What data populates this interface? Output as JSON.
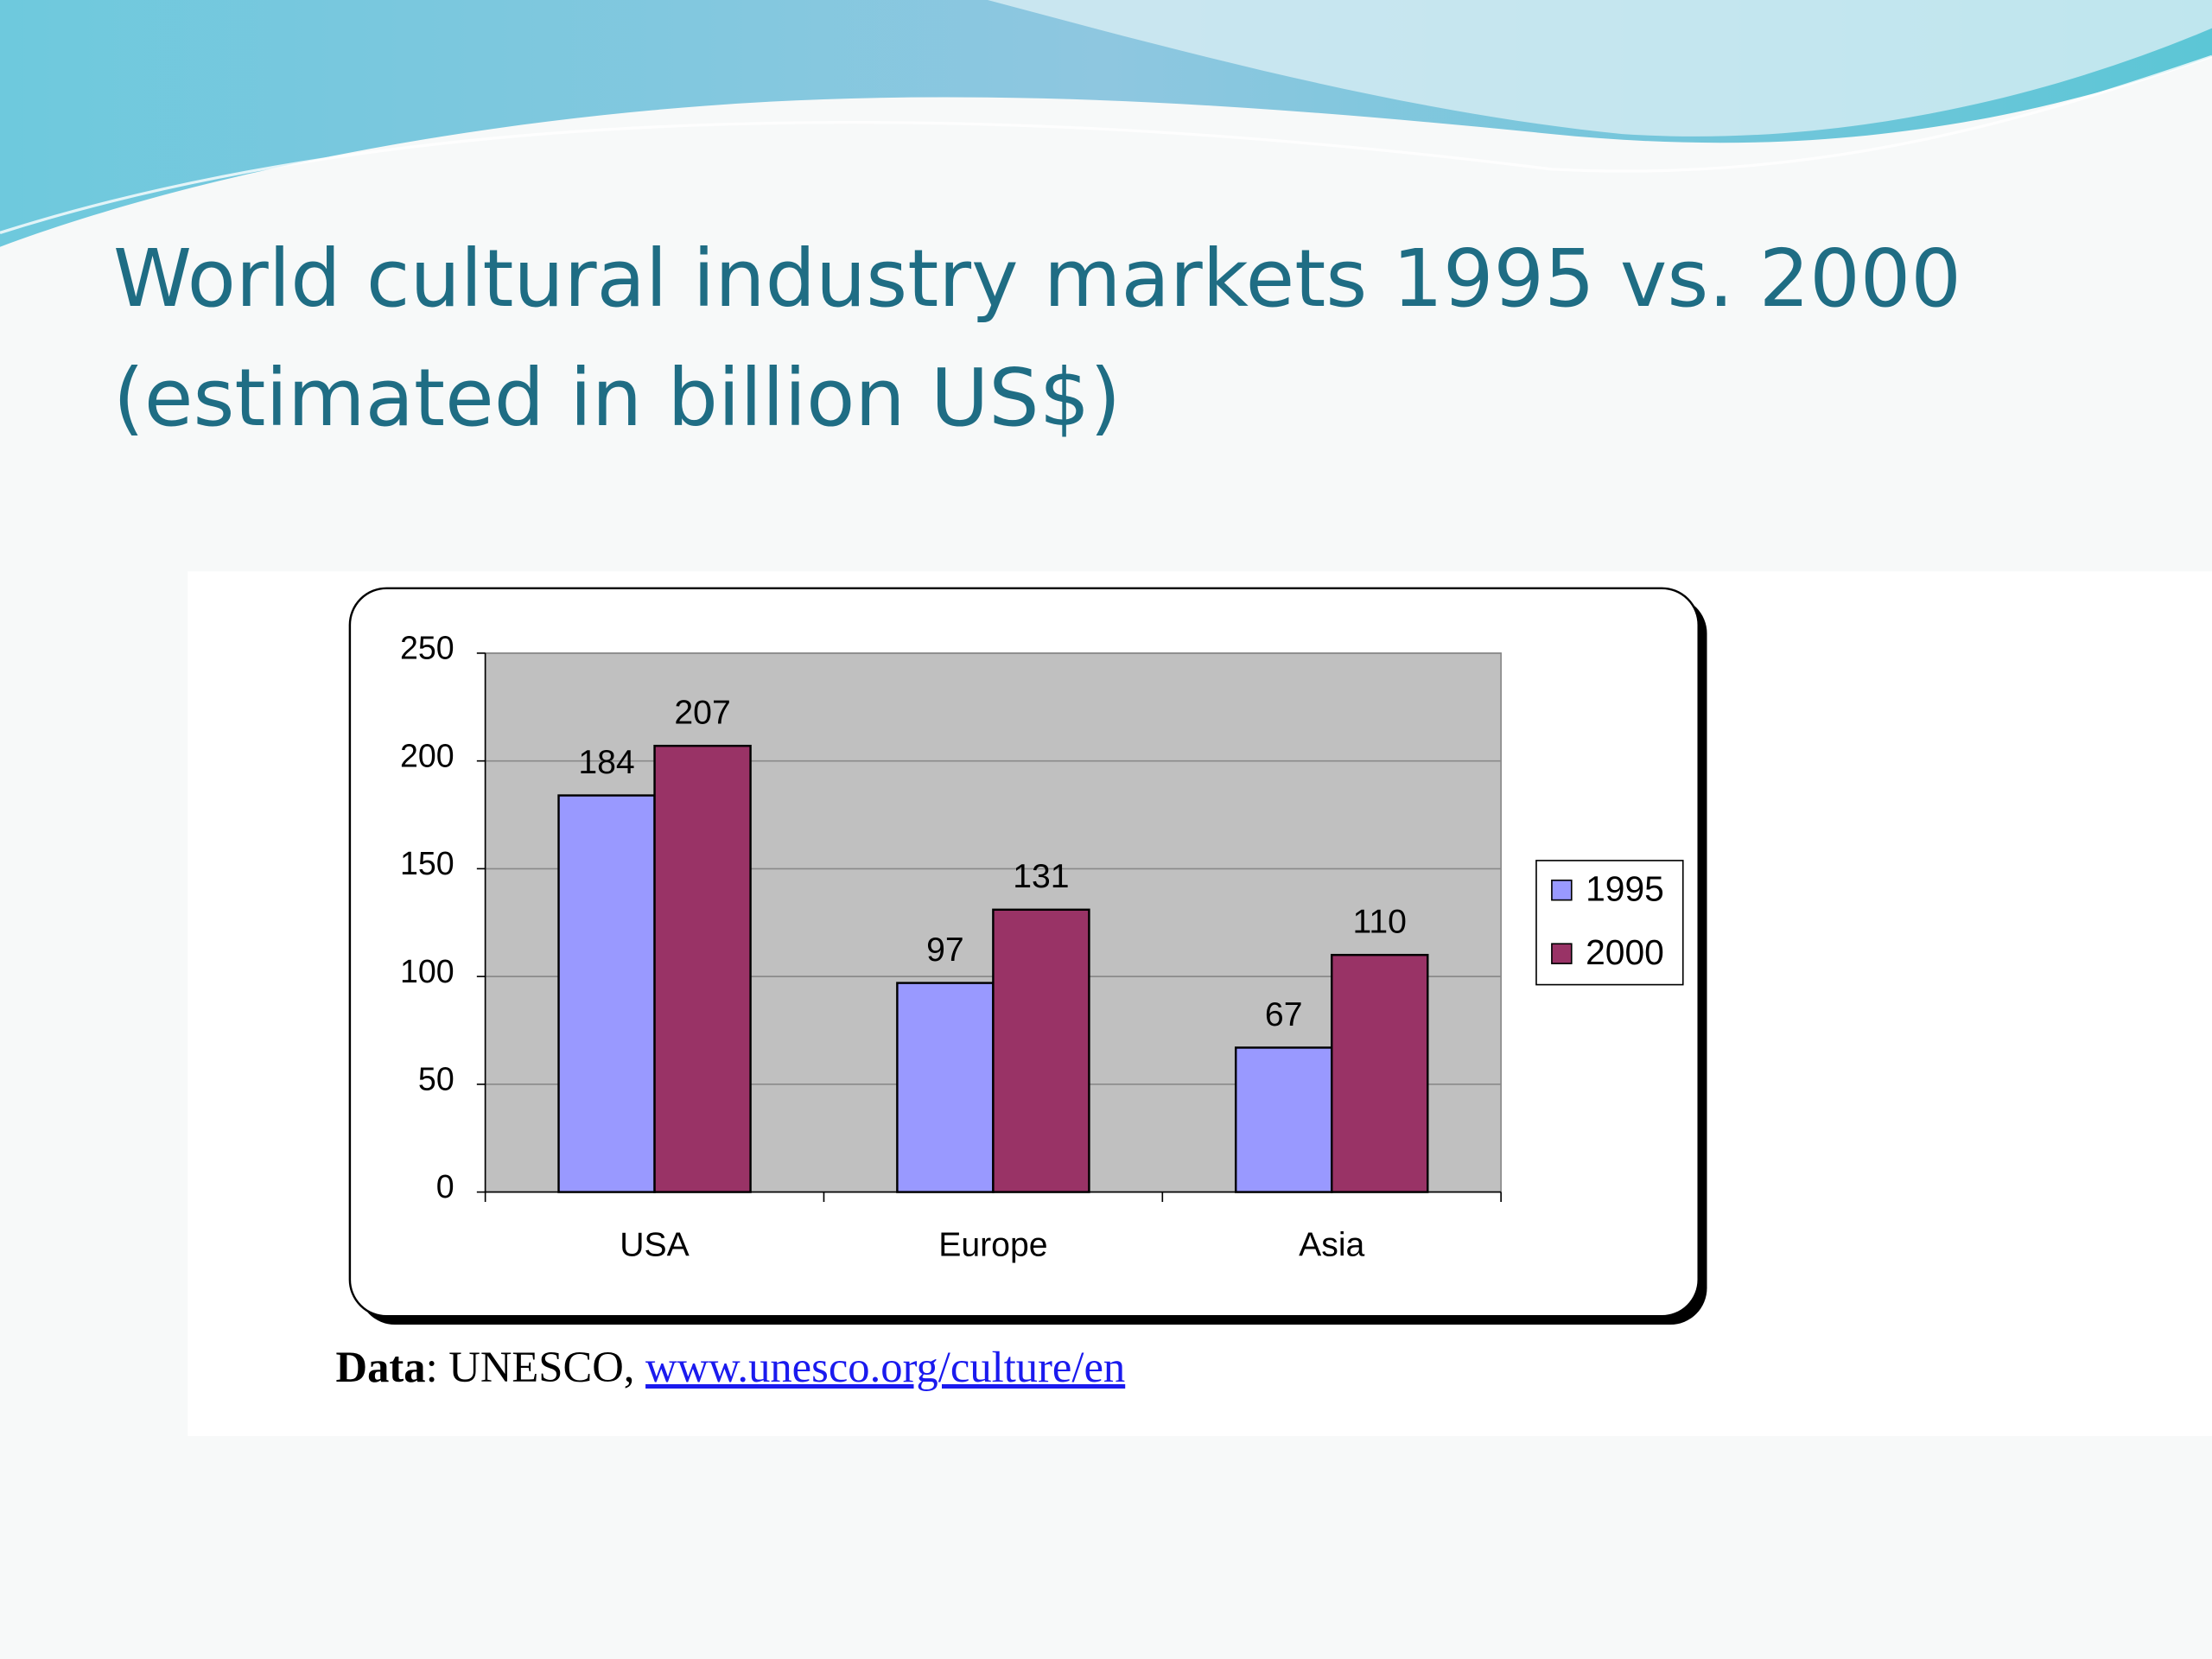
{
  "chart_data": {
    "type": "bar",
    "title": "World cultural industry markets 1995 vs. 2000 (estimated in billion US$)",
    "categories": [
      "USA",
      "Europe",
      "Asia"
    ],
    "series": [
      {
        "name": "1995",
        "color": "#9999ff",
        "values": [
          184,
          97,
          67
        ]
      },
      {
        "name": "2000",
        "color": "#993366",
        "values": [
          207,
          131,
          110
        ]
      }
    ],
    "ylim": [
      0,
      250
    ],
    "yticks": [
      0,
      50,
      100,
      150,
      200,
      250
    ],
    "grid": true,
    "legend": "right",
    "data_labels": true,
    "source": {
      "label": "Data",
      "text": ": UNESCO, ",
      "link": "www.unesco.org/culture/en"
    }
  }
}
